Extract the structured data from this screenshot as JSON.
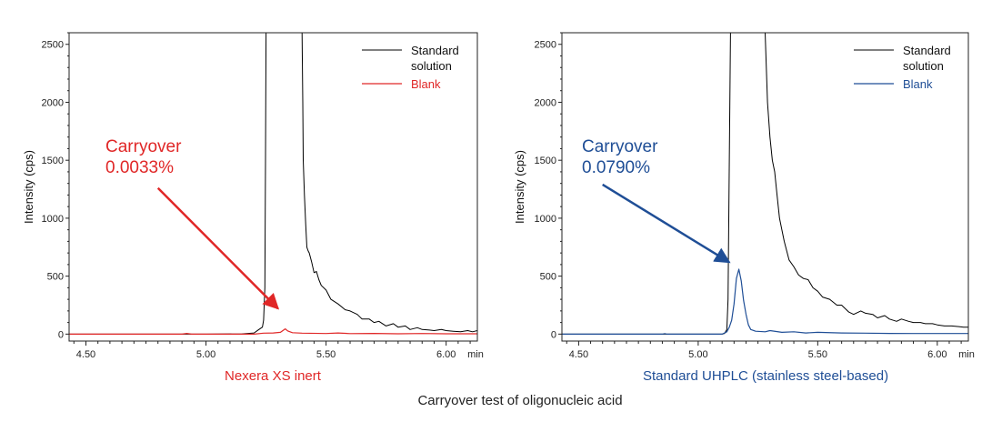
{
  "caption": "Carryover test of oligonucleic acid",
  "colors": {
    "standard": "#000000",
    "red": "#e02727",
    "blue": "#1f4e96"
  },
  "chart_data": [
    {
      "type": "line",
      "subtitle": "Nexera XS inert",
      "subtitle_color": "#e02727",
      "ylabel": "Intensity (cps)",
      "x_unit": "min",
      "xlim": [
        4.43,
        6.13
      ],
      "ylim": [
        -60,
        2600
      ],
      "xticks": [
        4.5,
        5.0,
        5.5,
        6.0
      ],
      "xtick_labels": [
        "4.50",
        "5.00",
        "5.50",
        "6.00"
      ],
      "yticks": [
        0,
        500,
        1000,
        1500,
        2000,
        2500
      ],
      "ytick_labels": [
        "0",
        "500",
        "1000",
        "1500",
        "2000",
        "2500"
      ],
      "grid": false,
      "legend_position": "top-right",
      "annotation": {
        "line1": "Carryover",
        "line2": "0.0033%",
        "color": "#e02727",
        "arrow_from": [
          4.8,
          1260
        ],
        "arrow_to": [
          5.3,
          220
        ]
      },
      "series": [
        {
          "name": "Standard solution",
          "color": "#000000",
          "x": [
            4.43,
            4.8,
            5.0,
            5.15,
            5.2,
            5.22,
            5.235,
            5.24,
            5.245,
            5.248,
            5.25,
            5.255,
            5.4,
            5.403,
            5.405,
            5.41,
            5.415,
            5.42,
            5.425,
            5.43,
            5.44,
            5.45,
            5.46,
            5.47,
            5.48,
            5.5,
            5.52,
            5.55,
            5.58,
            5.6,
            5.63,
            5.65,
            5.68,
            5.7,
            5.72,
            5.75,
            5.78,
            5.8,
            5.83,
            5.85,
            5.88,
            5.9,
            5.93,
            5.95,
            5.98,
            6.0,
            6.03,
            6.06,
            6.09,
            6.11,
            6.13
          ],
          "y": [
            0,
            0,
            0,
            2,
            10,
            40,
            60,
            120,
            400,
            1500,
            2600,
            2600,
            2600,
            2000,
            1500,
            1200,
            950,
            750,
            720,
            700,
            620,
            530,
            540,
            470,
            420,
            380,
            300,
            260,
            210,
            200,
            170,
            130,
            130,
            100,
            110,
            70,
            90,
            60,
            70,
            40,
            55,
            40,
            35,
            30,
            40,
            30,
            25,
            20,
            30,
            20,
            30
          ]
        },
        {
          "name": "Blank",
          "color": "#e02727",
          "x": [
            4.43,
            4.9,
            4.92,
            4.94,
            5.0,
            5.2,
            5.24,
            5.28,
            5.31,
            5.32,
            5.33,
            5.34,
            5.36,
            5.4,
            5.5,
            5.55,
            5.6,
            5.7,
            5.8,
            5.9,
            6.0,
            6.13
          ],
          "y": [
            0,
            0,
            6,
            0,
            0,
            0,
            8,
            10,
            15,
            30,
            45,
            28,
            12,
            8,
            5,
            10,
            4,
            6,
            3,
            5,
            3,
            3
          ]
        }
      ]
    },
    {
      "type": "line",
      "subtitle": "Standard UHPLC (stainless steel-based)",
      "subtitle_color": "#1f4e96",
      "ylabel": "Intensity (cps)",
      "x_unit": "min",
      "xlim": [
        4.43,
        6.13
      ],
      "ylim": [
        -60,
        2600
      ],
      "xticks": [
        4.5,
        5.0,
        5.5,
        6.0
      ],
      "xtick_labels": [
        "4.50",
        "5.00",
        "5.50",
        "6.00"
      ],
      "yticks": [
        0,
        500,
        1000,
        1500,
        2000,
        2500
      ],
      "ytick_labels": [
        "0",
        "500",
        "1000",
        "1500",
        "2000",
        "2500"
      ],
      "grid": false,
      "legend_position": "top-right",
      "annotation": {
        "line1": "Carryover",
        "line2": "0.0790%",
        "color": "#1f4e96",
        "arrow_from": [
          4.6,
          1290
        ],
        "arrow_to": [
          5.13,
          620
        ]
      },
      "series": [
        {
          "name": "Standard solution",
          "color": "#000000",
          "x": [
            4.43,
            4.8,
            5.0,
            5.1,
            5.11,
            5.12,
            5.125,
            5.13,
            5.135,
            5.28,
            5.285,
            5.29,
            5.3,
            5.31,
            5.32,
            5.33,
            5.34,
            5.35,
            5.36,
            5.38,
            5.4,
            5.42,
            5.44,
            5.46,
            5.48,
            5.5,
            5.52,
            5.55,
            5.58,
            5.6,
            5.63,
            5.65,
            5.68,
            5.7,
            5.73,
            5.75,
            5.78,
            5.8,
            5.83,
            5.85,
            5.88,
            5.9,
            5.93,
            5.95,
            5.98,
            6.0,
            6.03,
            6.06,
            6.09,
            6.11,
            6.13
          ],
          "y": [
            0,
            0,
            0,
            0,
            5,
            40,
            300,
            1500,
            2600,
            2600,
            2300,
            2000,
            1700,
            1500,
            1400,
            1200,
            1000,
            900,
            800,
            640,
            580,
            510,
            480,
            470,
            400,
            370,
            320,
            300,
            250,
            250,
            190,
            170,
            200,
            180,
            170,
            140,
            160,
            130,
            110,
            130,
            110,
            100,
            100,
            90,
            90,
            80,
            70,
            70,
            65,
            60,
            60
          ]
        },
        {
          "name": "Blank",
          "color": "#1f4e96",
          "x": [
            4.43,
            4.85,
            4.86,
            4.87,
            5.0,
            5.1,
            5.12,
            5.13,
            5.14,
            5.15,
            5.16,
            5.17,
            5.18,
            5.19,
            5.2,
            5.21,
            5.22,
            5.24,
            5.28,
            5.3,
            5.35,
            5.4,
            5.45,
            5.5,
            5.6,
            5.7,
            5.8,
            5.9,
            6.0,
            6.13
          ],
          "y": [
            0,
            0,
            4,
            0,
            0,
            0,
            20,
            60,
            120,
            260,
            480,
            560,
            460,
            290,
            170,
            80,
            40,
            25,
            20,
            30,
            15,
            20,
            10,
            15,
            10,
            8,
            6,
            5,
            5,
            5
          ]
        }
      ]
    }
  ]
}
